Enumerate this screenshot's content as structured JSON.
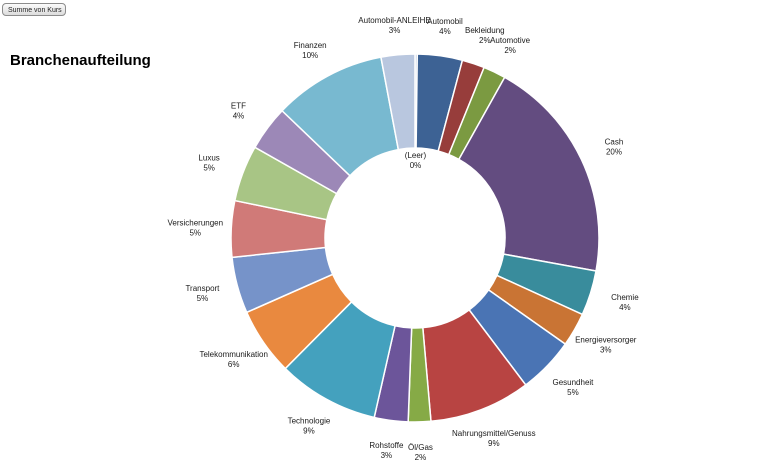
{
  "pivot_field_button": "Summe von Kurs",
  "chart_data": {
    "type": "pie",
    "subtype": "doughnut",
    "title": "Branchenaufteilung",
    "categories": [
      "(Leer)",
      "Automobil",
      "Bekleidung",
      "Automotive",
      "Cash",
      "Chemie",
      "Energieversorger",
      "Gesundheit",
      "Nahrungsmittel/Genuss",
      "Öl/Gas",
      "Rohstoffe",
      "Technologie",
      "Telekommunikation",
      "Transport",
      "Versicherungen",
      "Luxus",
      "ETF",
      "Finanzen",
      "Automobil-ANLEIHE"
    ],
    "values": [
      0.2,
      4,
      2,
      2,
      20,
      4,
      3,
      5,
      9,
      2,
      3,
      9,
      6,
      5,
      5,
      5,
      4,
      10,
      3
    ],
    "labels": [
      "0%",
      "4%",
      "2%",
      "2%",
      "20%",
      "4%",
      "3%",
      "5%",
      "9%",
      "2%",
      "3%",
      "9%",
      "6%",
      "5%",
      "5%",
      "5%",
      "4%",
      "10%",
      "3%"
    ],
    "colors": [
      "#b9c7df",
      "#3d6294",
      "#973d3b",
      "#7b9a41",
      "#634c80",
      "#398c9c",
      "#c97434",
      "#4a74b4",
      "#b84442",
      "#86aa46",
      "#6c559a",
      "#44a1be",
      "#e9893f",
      "#7693c9",
      "#d07a78",
      "#a8c585",
      "#9c88b7",
      "#78b9d0",
      "#b9c7df"
    ],
    "legend": "none"
  }
}
